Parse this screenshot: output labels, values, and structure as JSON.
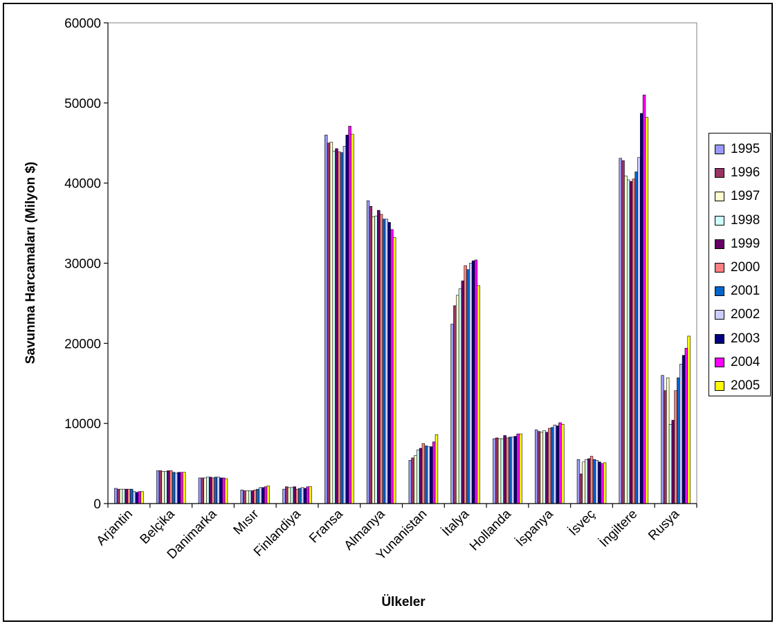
{
  "chart_data": {
    "type": "bar",
    "title": "",
    "xlabel": "Ülkeler",
    "ylabel": "Savunma Harcamaları (Milyon $)",
    "ylim": [
      0,
      60000
    ],
    "yticks": [
      "0",
      "10000",
      "20000",
      "30000",
      "40000",
      "50000",
      "60000"
    ],
    "grid": false,
    "legend_position": "right",
    "categories": [
      "Arjantin",
      "Belçika",
      "Danimarka",
      "Mısır",
      "Finlandiya",
      "Fransa",
      "Almanya",
      "Yunanistan",
      "İtalya",
      "Hollanda",
      "İspanya",
      "İsveç",
      "İngiltere",
      "Rusya"
    ],
    "series": [
      {
        "name": "1995",
        "color": "#9999ff",
        "values": [
          1900,
          4100,
          3200,
          1700,
          1800,
          46000,
          37800,
          5400,
          22400,
          8100,
          9200,
          5500,
          43100,
          16000
        ]
      },
      {
        "name": "1996",
        "color": "#993366",
        "values": [
          1800,
          4100,
          3200,
          1600,
          2100,
          45000,
          37100,
          5700,
          24700,
          8200,
          9000,
          3700,
          42800,
          14100
        ]
      },
      {
        "name": "1997",
        "color": "#ffffcc",
        "values": [
          1800,
          4000,
          3200,
          1600,
          2000,
          45100,
          35800,
          6000,
          26000,
          8100,
          8900,
          5200,
          40900,
          15700
        ]
      },
      {
        "name": "1998",
        "color": "#ccffff",
        "values": [
          1800,
          4000,
          3300,
          1600,
          2000,
          44000,
          35900,
          6700,
          26800,
          8100,
          9100,
          5500,
          40400,
          9900
        ]
      },
      {
        "name": "1999",
        "color": "#660066",
        "values": [
          1800,
          4100,
          3300,
          1600,
          2100,
          44300,
          36600,
          6900,
          27800,
          8500,
          8900,
          5600,
          40200,
          10400
        ]
      },
      {
        "name": "2000",
        "color": "#ff8080",
        "values": [
          1800,
          4100,
          3200,
          1700,
          1800,
          43900,
          36100,
          7500,
          29700,
          8200,
          9400,
          5900,
          40500,
          14100
        ]
      },
      {
        "name": "2001",
        "color": "#0066cc",
        "values": [
          1800,
          3900,
          3300,
          1800,
          1900,
          43800,
          35500,
          7200,
          29200,
          8300,
          9500,
          5500,
          41400,
          15700
        ]
      },
      {
        "name": "2002",
        "color": "#ccccff",
        "values": [
          1500,
          3800,
          3300,
          2000,
          2000,
          44600,
          35500,
          7100,
          30000,
          8300,
          9800,
          5400,
          43200,
          17400
        ]
      },
      {
        "name": "2003",
        "color": "#000080",
        "values": [
          1400,
          3900,
          3200,
          2000,
          1900,
          46000,
          35100,
          7100,
          30300,
          8400,
          9700,
          5200,
          48700,
          18500
        ]
      },
      {
        "name": "2004",
        "color": "#ff00ff",
        "values": [
          1500,
          3900,
          3200,
          2100,
          2100,
          47100,
          34200,
          7700,
          30400,
          8700,
          10100,
          5000,
          51000,
          19400
        ]
      },
      {
        "name": "2005",
        "color": "#ffff00",
        "values": [
          1500,
          3900,
          3100,
          2200,
          2100,
          46100,
          33200,
          8600,
          27200,
          8700,
          9900,
          5100,
          48200,
          20900
        ]
      }
    ]
  }
}
